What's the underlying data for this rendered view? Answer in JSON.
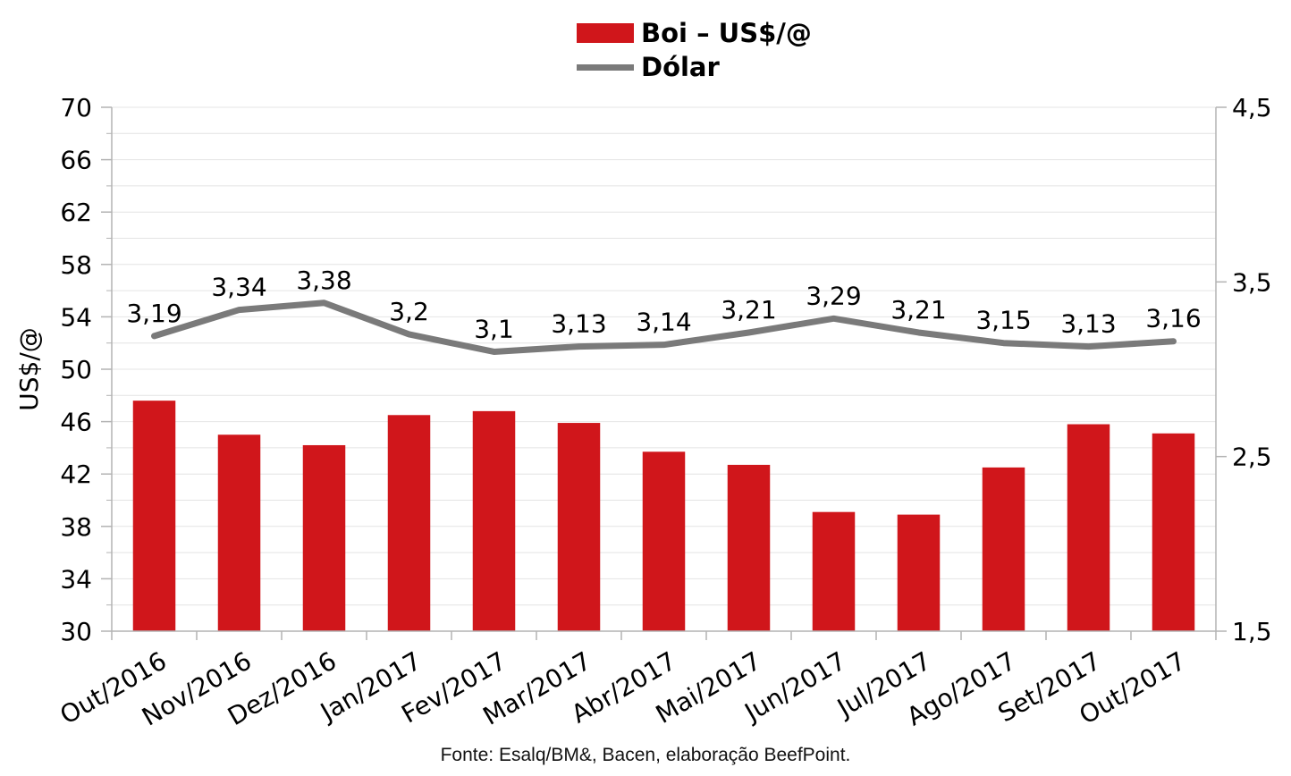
{
  "chart_data": {
    "type": "bar",
    "categories": [
      "Out/2016",
      "Nov/2016",
      "Dez/2016",
      "Jan/2017",
      "Fev/2017",
      "Mar/2017",
      "Abr/2017",
      "Mai/2017",
      "Jun/2017",
      "Jul/2017",
      "Ago/2017",
      "Set/2017",
      "Out/2017"
    ],
    "series": [
      {
        "name": "Boi – US$/@",
        "type": "bar",
        "axis": "left",
        "color": "#d0161b",
        "values": [
          47.6,
          45.0,
          44.2,
          46.5,
          46.8,
          45.9,
          43.7,
          42.7,
          39.1,
          38.9,
          42.5,
          45.8,
          45.1
        ]
      },
      {
        "name": "Dólar",
        "type": "line",
        "axis": "right",
        "color": "#7a7a7a",
        "values": [
          3.19,
          3.34,
          3.38,
          3.2,
          3.1,
          3.13,
          3.14,
          3.21,
          3.29,
          3.21,
          3.15,
          3.13,
          3.16
        ],
        "data_labels": [
          "3,19",
          "3,34",
          "3,38",
          "3,2",
          "3,1",
          "3,13",
          "3,14",
          "3,21",
          "3,29",
          "3,21",
          "3,15",
          "3,13",
          "3,16"
        ]
      }
    ],
    "ylabel": "US$/@",
    "ylim": [
      30,
      70
    ],
    "yticks": [
      30,
      34,
      38,
      42,
      46,
      50,
      54,
      58,
      62,
      66,
      70
    ],
    "ylim_right": [
      1.5,
      4.5
    ],
    "yticks_right": [
      "1,5",
      "2,5",
      "3,5",
      "4,5"
    ],
    "grid": true,
    "legend_position": "top-center"
  },
  "source_note": "Fonte: Esalq/BM&, Bacen, elaboração BeefPoint."
}
